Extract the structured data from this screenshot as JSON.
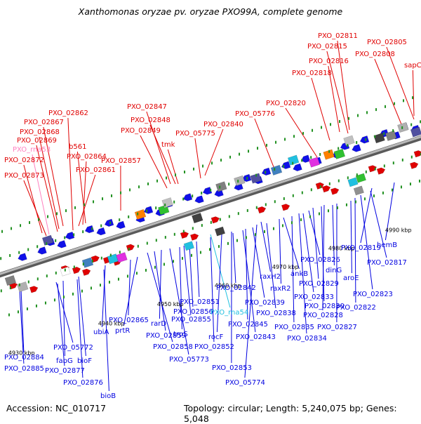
{
  "title": "Xanthomonas oryzae pv. oryzae PXO99A, complete genome",
  "footer": {
    "accession": "Accession: NC_010717",
    "summary": "Topology: circular; Length: 5,240,075 bp; Genes: 5,048"
  },
  "colors": {
    "forward_label": "#e00000",
    "reverse_label": "#0000e0",
    "rna_forward_label": "#ff80c0",
    "rna_reverse_label": "#20c0e0",
    "backbone": "#909090",
    "tick": "#209020"
  },
  "scale_labels": [
    "4930 kbp",
    "4940 kbp",
    "4950 kbp",
    "4960 kbp",
    "4970 kbp",
    "4980 kbp",
    "4990 kbp"
  ],
  "labels_top": [
    "PXO_02811",
    "PXO_02815",
    "PXO_02805",
    "PXO_02808",
    "PXO_02816",
    "sapC",
    "PXO_02818",
    "PXO_02820",
    "PXO_05776",
    "PXO_02847",
    "PXO_02862",
    "PXO_02848",
    "PXO_02840",
    "PXO_02867",
    "PXO_02849",
    "PXO_05775",
    "PXO_02868",
    "PXO_02869",
    "tmk",
    "b561",
    "PXO_rna53",
    "PXO_02864",
    "PXO_02857",
    "PXO_02872",
    "PXO_02861",
    "PXO_02873"
  ],
  "labels_bottom": [
    "PXO_02819",
    "hemB",
    "PXO_02826",
    "PXO_02817",
    "dinG",
    "aroE",
    "ankB",
    "raxH2",
    "PXO_02829",
    "raxR2",
    "PXO_02842",
    "PXO_02833",
    "PXO_02823",
    "PXO_02851",
    "PXO_02839",
    "PXO_02830",
    "PXO_02822",
    "PXO_02856",
    "PXO_rna54",
    "PXO_02838",
    "PXO_02828",
    "rarD",
    "PXO_02855",
    "PXO_02865",
    "prtR",
    "PXO_02845",
    "PXO_02835",
    "PXO_02827",
    "PXO_02859",
    "trpS",
    "rocF",
    "PXO_02843",
    "PXO_02834",
    "ubiA",
    "PXO_02858",
    "PXO_02852",
    "PXO_05772",
    "PXO_05773",
    "PXO_02884",
    "fabG",
    "bioF",
    "PXO_02853",
    "PXO_02885",
    "PXO_02877",
    "PXO_05774",
    "PXO_02876",
    "bioB"
  ]
}
